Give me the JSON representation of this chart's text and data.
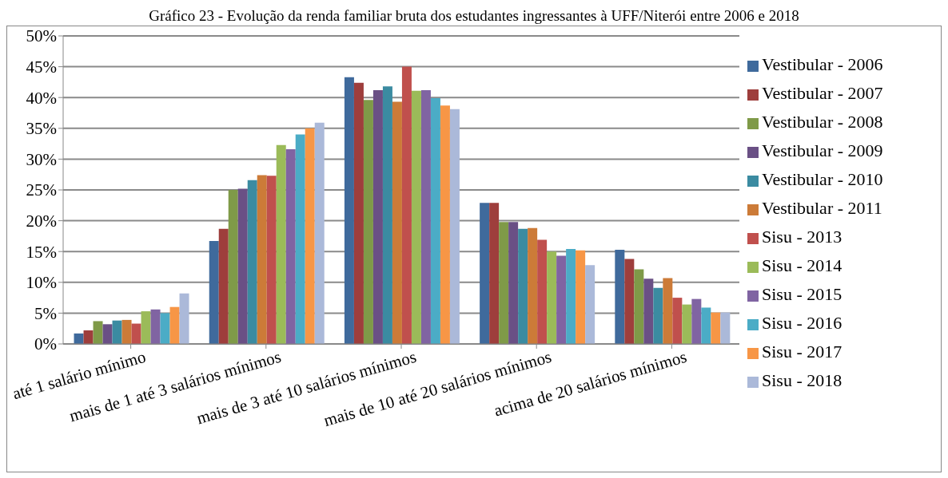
{
  "chart_data": {
    "type": "bar",
    "title": "Gráfico 23 - Evolução da renda familiar bruta dos estudantes ingressantes à UFF/Niterói entre 2006 e 2018",
    "categories": [
      "até 1 salário mínimo",
      "mais de 1 até 3 salários mínimos",
      "mais de 3 até 10 salários mínimos",
      "mais de 10 até 20 salários mínimos",
      "acima de 20 salários mínimos"
    ],
    "series": [
      {
        "name": "Vestibular - 2006",
        "color": "#3f6a9c",
        "values": [
          1.7,
          16.7,
          43.3,
          22.9,
          15.3
        ]
      },
      {
        "name": "Vestibular - 2007",
        "color": "#9e3e3c",
        "values": [
          2.2,
          18.7,
          42.4,
          22.9,
          13.8
        ]
      },
      {
        "name": "Vestibular - 2008",
        "color": "#7f9a48",
        "values": [
          3.7,
          25.0,
          39.6,
          19.8,
          12.1
        ]
      },
      {
        "name": "Vestibular - 2009",
        "color": "#6a5085",
        "values": [
          3.2,
          25.2,
          41.2,
          19.8,
          10.6
        ]
      },
      {
        "name": "Vestibular - 2010",
        "color": "#3b8ba1",
        "values": [
          3.8,
          26.6,
          41.8,
          18.7,
          9.1
        ]
      },
      {
        "name": "Vestibular - 2011",
        "color": "#cc7b38",
        "values": [
          3.9,
          27.4,
          39.3,
          18.8,
          10.7
        ]
      },
      {
        "name": "Sisu - 2013",
        "color": "#c0504d",
        "values": [
          3.3,
          27.3,
          45.0,
          16.9,
          7.5
        ]
      },
      {
        "name": "Sisu - 2014",
        "color": "#9bbb59",
        "values": [
          5.3,
          32.3,
          41.1,
          15.0,
          6.4
        ]
      },
      {
        "name": "Sisu - 2015",
        "color": "#8064a2",
        "values": [
          5.6,
          31.6,
          41.2,
          14.3,
          7.3
        ]
      },
      {
        "name": "Sisu - 2016",
        "color": "#4bacc6",
        "values": [
          5.0,
          34.0,
          39.9,
          15.4,
          5.9
        ]
      },
      {
        "name": "Sisu - 2017",
        "color": "#f79646",
        "values": [
          6.0,
          35.0,
          38.7,
          15.2,
          5.1
        ]
      },
      {
        "name": "Sisu - 2018",
        "color": "#abb9d9",
        "values": [
          8.2,
          35.9,
          38.1,
          12.8,
          5.1
        ]
      }
    ],
    "ylim": [
      0,
      50
    ],
    "yticks": [
      {
        "value": 0,
        "label": "0%"
      },
      {
        "value": 5,
        "label": "5%"
      },
      {
        "value": 10,
        "label": "10%"
      },
      {
        "value": 15,
        "label": "15%"
      },
      {
        "value": 20,
        "label": "20%"
      },
      {
        "value": 25,
        "label": "25%"
      },
      {
        "value": 30,
        "label": "30%"
      },
      {
        "value": 35,
        "label": "35%"
      },
      {
        "value": 40,
        "label": "40%"
      },
      {
        "value": 45,
        "label": "45%"
      },
      {
        "value": 50,
        "label": "50%"
      }
    ],
    "grid": "y",
    "legend": "right"
  }
}
